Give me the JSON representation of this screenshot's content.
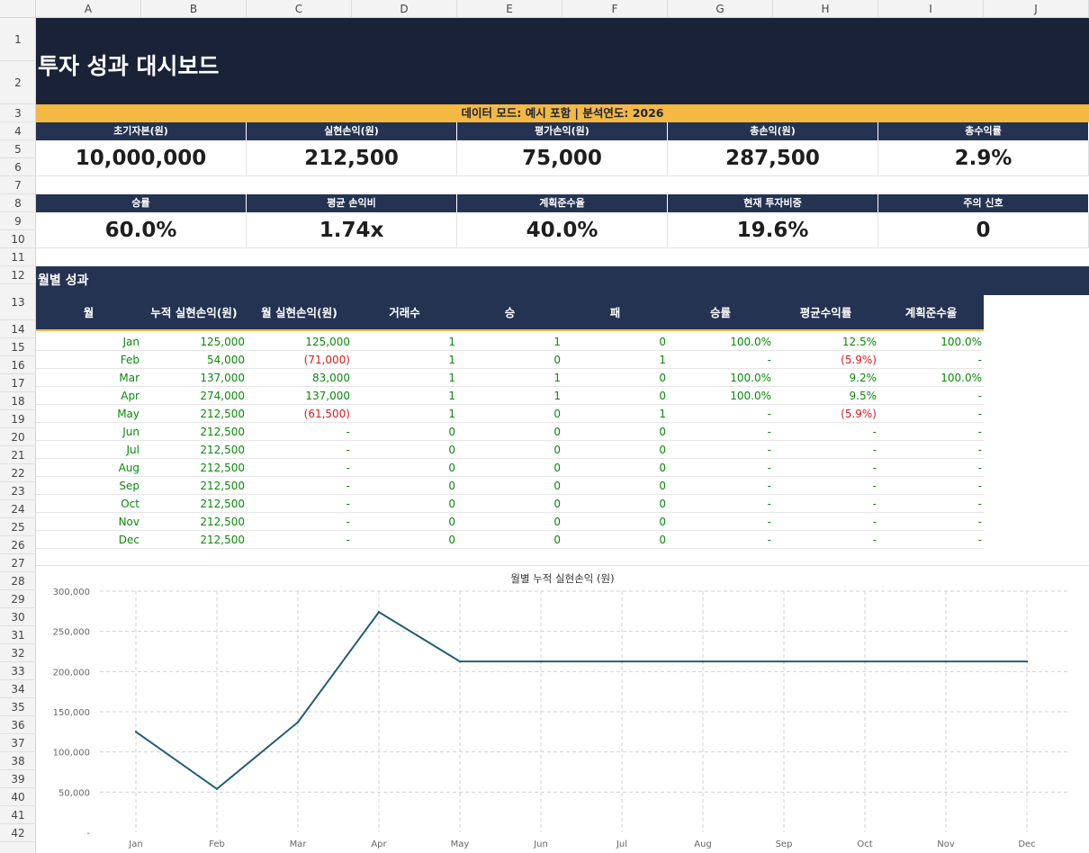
{
  "columns": [
    "A",
    "B",
    "C",
    "D",
    "E",
    "F",
    "G",
    "H",
    "I",
    "J"
  ],
  "rows": [
    "1",
    "2",
    "3",
    "4",
    "5",
    "6",
    "7",
    "8",
    "9",
    "10",
    "11",
    "12",
    "13",
    "14",
    "15",
    "16",
    "17",
    "18",
    "19",
    "20",
    "21",
    "22",
    "23",
    "24",
    "25",
    "26",
    "27",
    "28",
    "29",
    "30",
    "31",
    "32",
    "33",
    "34",
    "35",
    "36",
    "37",
    "38",
    "39",
    "40",
    "41",
    "42"
  ],
  "title": "투자 성과 대시보드",
  "mode_bar": "데이터 모드: 예시 포함  |  분석연도: 2026",
  "kpi_row1": [
    {
      "label": "초기자본(원)",
      "value": "10,000,000"
    },
    {
      "label": "실현손익(원)",
      "value": "212,500"
    },
    {
      "label": "평가손익(원)",
      "value": "75,000"
    },
    {
      "label": "총손익(원)",
      "value": "287,500"
    },
    {
      "label": "총수익률",
      "value": "2.9%"
    }
  ],
  "kpi_row2": [
    {
      "label": "승률",
      "value": "60.0%"
    },
    {
      "label": "평균 손익비",
      "value": "1.74x"
    },
    {
      "label": "계획준수율",
      "value": "40.0%"
    },
    {
      "label": "현재 투자비중",
      "value": "19.6%"
    },
    {
      "label": "주의 신호",
      "value": "0"
    }
  ],
  "monthly": {
    "section_title": "월별 성과",
    "headers": [
      "월",
      "누적 실현손익(원)",
      "월 실현손익(원)",
      "거래수",
      "승",
      "패",
      "승률",
      "평균수익률",
      "계획준수율"
    ],
    "rows": [
      [
        "Jan",
        "125,000",
        "125,000",
        "1",
        "1",
        "0",
        "100.0%",
        "12.5%",
        "100.0%"
      ],
      [
        "Feb",
        "54,000",
        "(71,000)",
        "1",
        "0",
        "1",
        "-",
        "(5.9%)",
        "-"
      ],
      [
        "Mar",
        "137,000",
        "83,000",
        "1",
        "1",
        "0",
        "100.0%",
        "9.2%",
        "100.0%"
      ],
      [
        "Apr",
        "274,000",
        "137,000",
        "1",
        "1",
        "0",
        "100.0%",
        "9.5%",
        "-"
      ],
      [
        "May",
        "212,500",
        "(61,500)",
        "1",
        "0",
        "1",
        "-",
        "(5.9%)",
        "-"
      ],
      [
        "Jun",
        "212,500",
        "-",
        "0",
        "0",
        "0",
        "-",
        "-",
        "-"
      ],
      [
        "Jul",
        "212,500",
        "-",
        "0",
        "0",
        "0",
        "-",
        "-",
        "-"
      ],
      [
        "Aug",
        "212,500",
        "-",
        "0",
        "0",
        "0",
        "-",
        "-",
        "-"
      ],
      [
        "Sep",
        "212,500",
        "-",
        "0",
        "0",
        "0",
        "-",
        "-",
        "-"
      ],
      [
        "Oct",
        "212,500",
        "-",
        "0",
        "0",
        "0",
        "-",
        "-",
        "-"
      ],
      [
        "Nov",
        "212,500",
        "-",
        "0",
        "0",
        "0",
        "-",
        "-",
        "-"
      ],
      [
        "Dec",
        "212,500",
        "-",
        "0",
        "0",
        "0",
        "-",
        "-",
        "-"
      ]
    ]
  },
  "colors": {
    "navy": "#1a2238",
    "header": "#243352",
    "accent": "#f4b942",
    "positive": "#0a8a0a",
    "negative": "#d91c1c",
    "line": "#1f5f7a"
  },
  "chart_data": {
    "type": "line",
    "title": "월별 누적 실현손익 (원)",
    "categories": [
      "Jan",
      "Feb",
      "Mar",
      "Apr",
      "May",
      "Jun",
      "Jul",
      "Aug",
      "Sep",
      "Oct",
      "Nov",
      "Dec"
    ],
    "values": [
      125000,
      54000,
      137000,
      274000,
      212500,
      212500,
      212500,
      212500,
      212500,
      212500,
      212500,
      212500
    ],
    "ylim": [
      0,
      300000
    ],
    "yticks": [
      "-",
      "50,000",
      "100,000",
      "150,000",
      "200,000",
      "250,000",
      "300,000"
    ],
    "grid": true
  }
}
